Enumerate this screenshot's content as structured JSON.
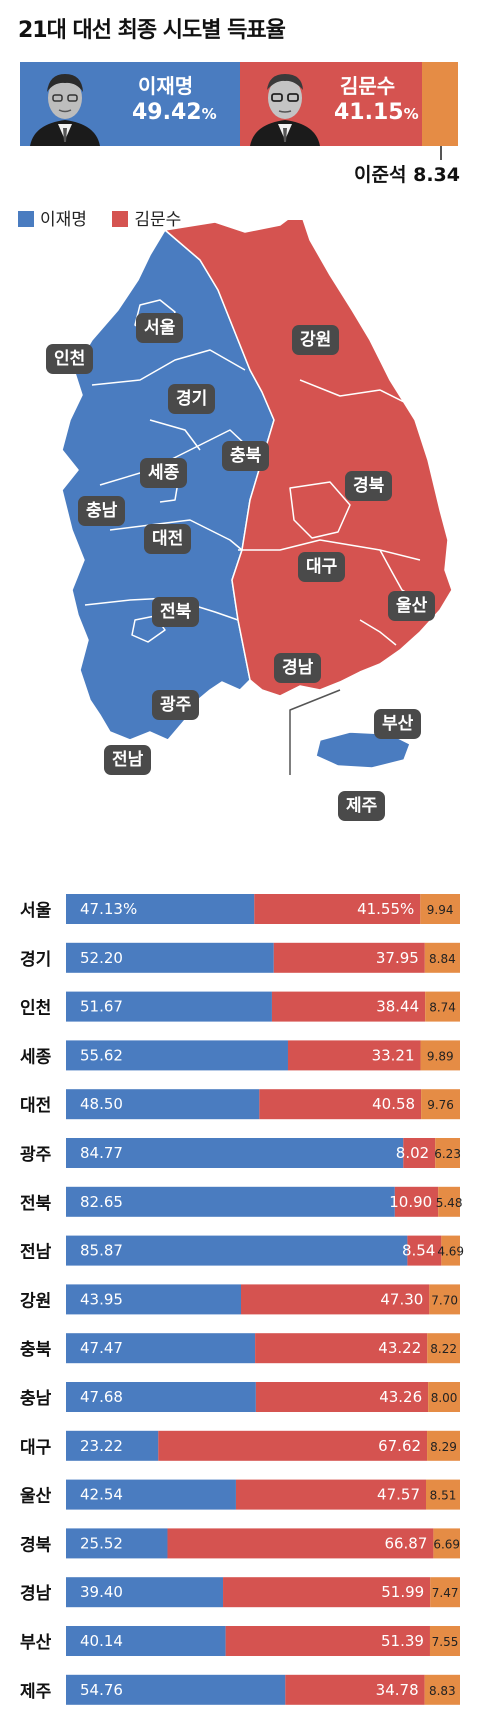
{
  "title": "21대 대선 최종 시도별 득표율",
  "candidates": [
    {
      "name": "이재명",
      "value": "49.42",
      "unit": "%",
      "color": "#4a7cc0"
    },
    {
      "name": "김문수",
      "value": "41.15",
      "unit": "%",
      "color": "#d55350"
    },
    {
      "name": "이준석",
      "value": "8.34",
      "color": "#e58c45"
    }
  ],
  "legend": [
    {
      "label": "이재명",
      "color": "#4a7cc0"
    },
    {
      "label": "김문수",
      "color": "#d55350"
    }
  ],
  "map": {
    "regions": [
      {
        "name": "서울",
        "winner": "이재명"
      },
      {
        "name": "인천",
        "winner": "이재명"
      },
      {
        "name": "경기",
        "winner": "이재명"
      },
      {
        "name": "강원",
        "winner": "김문수"
      },
      {
        "name": "세종",
        "winner": "이재명"
      },
      {
        "name": "충북",
        "winner": "이재명"
      },
      {
        "name": "충남",
        "winner": "이재명"
      },
      {
        "name": "대전",
        "winner": "이재명"
      },
      {
        "name": "경북",
        "winner": "김문수"
      },
      {
        "name": "대구",
        "winner": "김문수"
      },
      {
        "name": "전북",
        "winner": "이재명"
      },
      {
        "name": "울산",
        "winner": "김문수"
      },
      {
        "name": "경남",
        "winner": "김문수"
      },
      {
        "name": "광주",
        "winner": "이재명"
      },
      {
        "name": "부산",
        "winner": "김문수"
      },
      {
        "name": "전남",
        "winner": "이재명"
      },
      {
        "name": "제주",
        "winner": "이재명"
      }
    ]
  },
  "chart_data": {
    "type": "bar",
    "stacked": true,
    "orientation": "horizontal",
    "categories": [
      "서울",
      "경기",
      "인천",
      "세종",
      "대전",
      "광주",
      "전북",
      "전남",
      "강원",
      "충북",
      "충남",
      "대구",
      "울산",
      "경북",
      "경남",
      "부산",
      "제주"
    ],
    "series": [
      {
        "name": "이재명",
        "color": "#4a7cc0",
        "values": [
          47.13,
          52.2,
          51.67,
          55.62,
          48.5,
          84.77,
          82.65,
          85.87,
          43.95,
          47.47,
          47.68,
          23.22,
          42.54,
          25.52,
          39.4,
          40.14,
          54.76
        ]
      },
      {
        "name": "김문수",
        "color": "#d55350",
        "values": [
          41.55,
          37.95,
          38.44,
          33.21,
          40.58,
          8.02,
          10.9,
          8.54,
          47.3,
          43.22,
          43.26,
          67.62,
          47.57,
          66.87,
          51.99,
          51.39,
          34.78
        ]
      },
      {
        "name": "이준석",
        "color": "#e58c45",
        "values": [
          9.94,
          8.84,
          8.74,
          9.89,
          9.76,
          6.23,
          5.48,
          4.69,
          7.7,
          8.22,
          8.0,
          8.29,
          8.51,
          6.69,
          7.47,
          7.55,
          8.83
        ]
      }
    ],
    "value_labels": [
      [
        "47.13%",
        "52.20",
        "51.67",
        "55.62",
        "48.50",
        "84.77",
        "82.65",
        "85.87",
        "43.95",
        "47.47",
        "47.68",
        "23.22",
        "42.54",
        "25.52",
        "39.40",
        "40.14",
        "54.76"
      ],
      [
        "41.55%",
        "37.95",
        "38.44",
        "33.21",
        "40.58",
        "8.02",
        "10.90",
        "8.54",
        "47.30",
        "43.22",
        "43.26",
        "67.62",
        "47.57",
        "66.87",
        "51.99",
        "51.39",
        "34.78"
      ],
      [
        "9.94",
        "8.84",
        "8.74",
        "9.89",
        "9.76",
        "6.23",
        "5.48",
        "4.69",
        "7.70",
        "8.22",
        "8.00",
        "8.29",
        "8.51",
        "6.69",
        "7.47",
        "7.55",
        "8.83"
      ]
    ],
    "xlim": [
      0,
      100
    ]
  }
}
